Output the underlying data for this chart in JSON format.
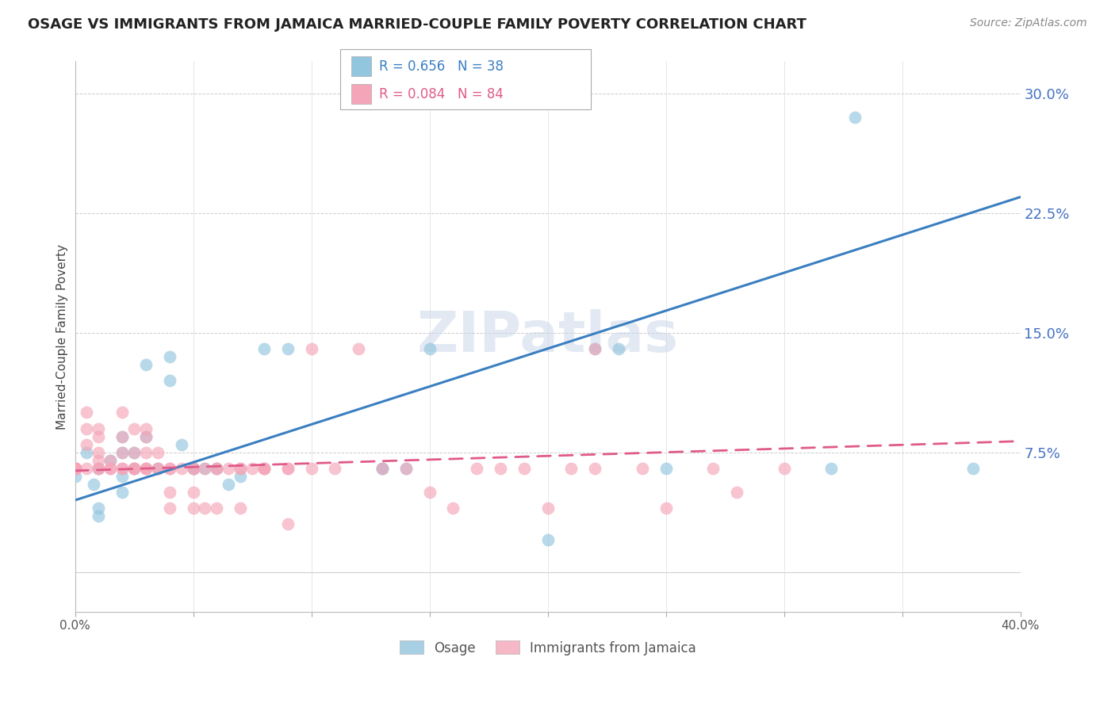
{
  "title": "OSAGE VS IMMIGRANTS FROM JAMAICA MARRIED-COUPLE FAMILY POVERTY CORRELATION CHART",
  "source": "Source: ZipAtlas.com",
  "ylabel": "Married-Couple Family Poverty",
  "ytick_labels": [
    "",
    "7.5%",
    "15.0%",
    "22.5%",
    "30.0%"
  ],
  "ytick_vals": [
    0.0,
    0.075,
    0.15,
    0.225,
    0.3
  ],
  "xlim": [
    0.0,
    0.4
  ],
  "ylim": [
    -0.025,
    0.32
  ],
  "osage_color": "#92c5de",
  "jamaica_color": "#f4a5b8",
  "osage_line_color": "#3a7fc1",
  "jamaica_line_color": "#e05a8a",
  "watermark": "ZIPatlas",
  "osage_scatter": [
    [
      0.0,
      0.06
    ],
    [
      0.005,
      0.075
    ],
    [
      0.008,
      0.055
    ],
    [
      0.01,
      0.065
    ],
    [
      0.01,
      0.04
    ],
    [
      0.01,
      0.035
    ],
    [
      0.015,
      0.07
    ],
    [
      0.02,
      0.085
    ],
    [
      0.02,
      0.075
    ],
    [
      0.02,
      0.06
    ],
    [
      0.02,
      0.05
    ],
    [
      0.025,
      0.065
    ],
    [
      0.025,
      0.075
    ],
    [
      0.03,
      0.085
    ],
    [
      0.03,
      0.13
    ],
    [
      0.035,
      0.065
    ],
    [
      0.04,
      0.135
    ],
    [
      0.04,
      0.12
    ],
    [
      0.045,
      0.08
    ],
    [
      0.05,
      0.065
    ],
    [
      0.05,
      0.065
    ],
    [
      0.055,
      0.065
    ],
    [
      0.06,
      0.065
    ],
    [
      0.065,
      0.055
    ],
    [
      0.07,
      0.06
    ],
    [
      0.08,
      0.14
    ],
    [
      0.09,
      0.14
    ],
    [
      0.13,
      0.065
    ],
    [
      0.13,
      0.065
    ],
    [
      0.14,
      0.065
    ],
    [
      0.15,
      0.14
    ],
    [
      0.2,
      0.02
    ],
    [
      0.22,
      0.14
    ],
    [
      0.23,
      0.14
    ],
    [
      0.25,
      0.065
    ],
    [
      0.32,
      0.065
    ],
    [
      0.33,
      0.285
    ],
    [
      0.38,
      0.065
    ]
  ],
  "jamaica_scatter": [
    [
      0.0,
      0.065
    ],
    [
      0.0,
      0.065
    ],
    [
      0.0,
      0.065
    ],
    [
      0.0,
      0.065
    ],
    [
      0.0,
      0.065
    ],
    [
      0.0,
      0.065
    ],
    [
      0.0,
      0.065
    ],
    [
      0.005,
      0.065
    ],
    [
      0.005,
      0.08
    ],
    [
      0.005,
      0.09
    ],
    [
      0.005,
      0.1
    ],
    [
      0.01,
      0.065
    ],
    [
      0.01,
      0.065
    ],
    [
      0.01,
      0.07
    ],
    [
      0.01,
      0.075
    ],
    [
      0.01,
      0.085
    ],
    [
      0.01,
      0.09
    ],
    [
      0.015,
      0.065
    ],
    [
      0.015,
      0.065
    ],
    [
      0.015,
      0.07
    ],
    [
      0.02,
      0.065
    ],
    [
      0.02,
      0.065
    ],
    [
      0.02,
      0.075
    ],
    [
      0.02,
      0.085
    ],
    [
      0.02,
      0.1
    ],
    [
      0.025,
      0.065
    ],
    [
      0.025,
      0.065
    ],
    [
      0.025,
      0.065
    ],
    [
      0.025,
      0.075
    ],
    [
      0.025,
      0.09
    ],
    [
      0.03,
      0.065
    ],
    [
      0.03,
      0.065
    ],
    [
      0.03,
      0.065
    ],
    [
      0.03,
      0.075
    ],
    [
      0.03,
      0.085
    ],
    [
      0.03,
      0.09
    ],
    [
      0.035,
      0.065
    ],
    [
      0.035,
      0.065
    ],
    [
      0.035,
      0.075
    ],
    [
      0.04,
      0.065
    ],
    [
      0.04,
      0.065
    ],
    [
      0.04,
      0.04
    ],
    [
      0.04,
      0.05
    ],
    [
      0.045,
      0.065
    ],
    [
      0.05,
      0.065
    ],
    [
      0.05,
      0.065
    ],
    [
      0.05,
      0.04
    ],
    [
      0.05,
      0.05
    ],
    [
      0.055,
      0.065
    ],
    [
      0.055,
      0.04
    ],
    [
      0.06,
      0.065
    ],
    [
      0.06,
      0.065
    ],
    [
      0.06,
      0.04
    ],
    [
      0.065,
      0.065
    ],
    [
      0.07,
      0.065
    ],
    [
      0.07,
      0.065
    ],
    [
      0.07,
      0.04
    ],
    [
      0.075,
      0.065
    ],
    [
      0.08,
      0.065
    ],
    [
      0.08,
      0.065
    ],
    [
      0.08,
      0.065
    ],
    [
      0.09,
      0.065
    ],
    [
      0.09,
      0.065
    ],
    [
      0.09,
      0.03
    ],
    [
      0.1,
      0.065
    ],
    [
      0.1,
      0.14
    ],
    [
      0.11,
      0.065
    ],
    [
      0.12,
      0.14
    ],
    [
      0.13,
      0.065
    ],
    [
      0.14,
      0.065
    ],
    [
      0.15,
      0.05
    ],
    [
      0.16,
      0.04
    ],
    [
      0.17,
      0.065
    ],
    [
      0.18,
      0.065
    ],
    [
      0.19,
      0.065
    ],
    [
      0.2,
      0.04
    ],
    [
      0.21,
      0.065
    ],
    [
      0.22,
      0.065
    ],
    [
      0.22,
      0.14
    ],
    [
      0.24,
      0.065
    ],
    [
      0.25,
      0.04
    ],
    [
      0.27,
      0.065
    ],
    [
      0.28,
      0.05
    ],
    [
      0.3,
      0.065
    ]
  ],
  "osage_line_x": [
    0.0,
    0.4
  ],
  "osage_line_y": [
    0.045,
    0.235
  ],
  "jamaica_line_x": [
    0.0,
    0.4
  ],
  "jamaica_line_y": [
    0.0635,
    0.082
  ],
  "legend_R_osage": "R = 0.656",
  "legend_N_osage": "N = 38",
  "legend_R_jamaica": "R = 0.084",
  "legend_N_jamaica": "N = 84",
  "ytick_color": "#4472c4",
  "title_fontsize": 13,
  "source_fontsize": 10,
  "ylabel_fontsize": 11
}
